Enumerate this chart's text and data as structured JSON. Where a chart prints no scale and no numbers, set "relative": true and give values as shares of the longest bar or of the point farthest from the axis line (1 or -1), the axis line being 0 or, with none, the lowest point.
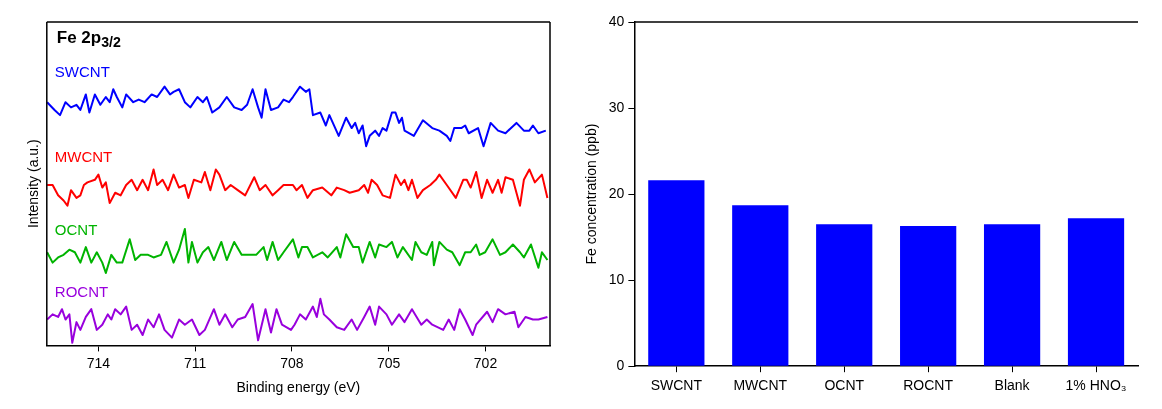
{
  "chart_data": [
    {
      "type": "line",
      "relative": true,
      "xlabel": "Binding energy (eV)",
      "ylabel": "Intensity (a.u.)",
      "annotations": [
        "Fe 2p$_{3/2}$"
      ],
      "xlim": [
        715.6,
        700.0
      ],
      "xticks": [
        714,
        711,
        708,
        705,
        702
      ],
      "grid": false,
      "series": [
        {
          "name": "SWCNT",
          "color": "#0000ff",
          "x": [
            715.59,
            715.36,
            715.19,
            715.02,
            714.85,
            714.68,
            714.56,
            714.39,
            714.28,
            714.11,
            713.94,
            713.77,
            713.65,
            713.54,
            713.43,
            713.26,
            713.14,
            712.92,
            712.75,
            712.57,
            712.35,
            712.18,
            711.95,
            711.78,
            711.67,
            711.5,
            711.32,
            711.15,
            710.93,
            710.76,
            710.64,
            710.47,
            710.25,
            710.02,
            709.79,
            709.56,
            709.39,
            709.22,
            709.05,
            708.94,
            708.82,
            708.65,
            708.43,
            708.26,
            708.09,
            707.97,
            707.75,
            707.57,
            707.46,
            707.35,
            707.12,
            706.95,
            706.84,
            706.55,
            706.32,
            706.15,
            706.04,
            705.93,
            705.81,
            705.7,
            705.59,
            705.42,
            705.3,
            705.19,
            705.07,
            704.9,
            704.79,
            704.68,
            704.59,
            704.51,
            704.22,
            703.94,
            703.65,
            703.43,
            703.2,
            703.09,
            702.97,
            702.75,
            702.63,
            702.52,
            702.23,
            702.06,
            701.84,
            701.61,
            701.38,
            701.04,
            700.81,
            700.64,
            700.53,
            700.36,
            700.13
          ],
          "values": [
            0.94,
            0.91,
            0.89,
            0.94,
            0.92,
            0.93,
            0.91,
            0.97,
            0.9,
            0.97,
            0.93,
            0.96,
            0.94,
            0.99,
            0.96,
            0.92,
            0.97,
            0.94,
            0.95,
            0.94,
            0.97,
            0.96,
            1.0,
            0.97,
            0.98,
            0.99,
            0.94,
            0.92,
            0.96,
            0.94,
            0.96,
            0.9,
            0.92,
            0.96,
            0.92,
            0.91,
            0.93,
            0.99,
            0.92,
            0.88,
            0.99,
            0.91,
            0.92,
            0.95,
            0.94,
            0.96,
            1.0,
            0.98,
            0.99,
            0.89,
            0.9,
            0.85,
            0.89,
            0.81,
            0.88,
            0.84,
            0.86,
            0.82,
            0.85,
            0.77,
            0.81,
            0.83,
            0.81,
            0.84,
            0.83,
            0.9,
            0.9,
            0.86,
            0.88,
            0.83,
            0.81,
            0.87,
            0.84,
            0.83,
            0.81,
            0.79,
            0.84,
            0.84,
            0.85,
            0.82,
            0.84,
            0.77,
            0.86,
            0.83,
            0.82,
            0.86,
            0.83,
            0.83,
            0.85,
            0.82,
            0.83
          ]
        },
        {
          "name": "MWCNT",
          "color": "#ff0000",
          "x": [
            715.59,
            715.42,
            715.25,
            715.08,
            714.96,
            714.85,
            714.68,
            714.56,
            714.45,
            714.34,
            714.11,
            714.0,
            713.88,
            713.77,
            713.65,
            713.48,
            713.31,
            713.14,
            712.97,
            712.8,
            712.63,
            712.46,
            712.29,
            712.18,
            712.01,
            711.84,
            711.67,
            711.5,
            711.32,
            711.21,
            711.04,
            710.81,
            710.7,
            710.53,
            710.36,
            710.25,
            710.07,
            709.9,
            709.68,
            709.45,
            709.17,
            709.0,
            708.82,
            708.6,
            708.43,
            708.26,
            707.97,
            707.86,
            707.69,
            707.52,
            707.35,
            707.06,
            706.78,
            706.61,
            706.38,
            706.21,
            705.93,
            705.76,
            705.64,
            705.53,
            705.36,
            705.19,
            704.96,
            704.79,
            704.62,
            704.51,
            704.39,
            704.28,
            704.11,
            703.94,
            703.71,
            703.54,
            703.43,
            703.2,
            702.92,
            702.69,
            702.58,
            702.46,
            702.29,
            702.12,
            701.95,
            701.78,
            701.61,
            701.5,
            701.38,
            701.15,
            700.93,
            700.81,
            700.64,
            700.47,
            700.25,
            700.08
          ],
          "values": [
            0.62,
            0.62,
            0.58,
            0.56,
            0.54,
            0.6,
            0.57,
            0.58,
            0.62,
            0.63,
            0.64,
            0.66,
            0.61,
            0.63,
            0.55,
            0.59,
            0.58,
            0.62,
            0.64,
            0.6,
            0.64,
            0.6,
            0.68,
            0.62,
            0.64,
            0.6,
            0.66,
            0.61,
            0.62,
            0.57,
            0.64,
            0.63,
            0.67,
            0.6,
            0.68,
            0.66,
            0.6,
            0.62,
            0.6,
            0.58,
            0.65,
            0.6,
            0.62,
            0.58,
            0.6,
            0.62,
            0.62,
            0.6,
            0.62,
            0.57,
            0.6,
            0.61,
            0.58,
            0.61,
            0.6,
            0.59,
            0.6,
            0.62,
            0.59,
            0.64,
            0.62,
            0.58,
            0.57,
            0.66,
            0.62,
            0.64,
            0.6,
            0.64,
            0.57,
            0.6,
            0.62,
            0.64,
            0.66,
            0.62,
            0.57,
            0.64,
            0.64,
            0.61,
            0.67,
            0.57,
            0.64,
            0.59,
            0.64,
            0.59,
            0.65,
            0.64,
            0.54,
            0.64,
            0.68,
            0.63,
            0.66,
            0.57
          ]
        },
        {
          "name": "OCNT",
          "color": "#00b400",
          "x": [
            715.59,
            715.42,
            715.25,
            715.08,
            714.9,
            714.73,
            714.56,
            714.39,
            714.22,
            714.05,
            713.88,
            713.77,
            713.6,
            713.43,
            713.26,
            713.03,
            712.86,
            712.69,
            712.46,
            712.29,
            712.06,
            711.89,
            711.67,
            711.5,
            711.32,
            711.21,
            711.1,
            710.93,
            710.76,
            710.59,
            710.42,
            710.19,
            710.02,
            709.79,
            709.56,
            709.34,
            709.11,
            708.88,
            708.77,
            708.6,
            708.43,
            708.26,
            707.97,
            707.8,
            707.69,
            707.52,
            707.35,
            707.06,
            706.89,
            706.61,
            706.5,
            706.32,
            706.1,
            705.93,
            705.81,
            705.59,
            705.42,
            705.3,
            705.07,
            704.9,
            704.73,
            704.56,
            704.28,
            704.17,
            703.99,
            703.82,
            703.65,
            703.6,
            703.43,
            703.2,
            703.03,
            702.8,
            702.63,
            702.46,
            702.29,
            702.18,
            702.01,
            701.78,
            701.55,
            701.38,
            701.15,
            700.93,
            700.81,
            700.59,
            700.36,
            700.25,
            700.08
          ],
          "values": [
            0.36,
            0.32,
            0.34,
            0.35,
            0.37,
            0.36,
            0.32,
            0.38,
            0.32,
            0.36,
            0.32,
            0.28,
            0.35,
            0.32,
            0.32,
            0.41,
            0.33,
            0.35,
            0.35,
            0.34,
            0.35,
            0.4,
            0.32,
            0.37,
            0.45,
            0.32,
            0.4,
            0.32,
            0.36,
            0.38,
            0.33,
            0.4,
            0.33,
            0.4,
            0.35,
            0.35,
            0.35,
            0.38,
            0.33,
            0.4,
            0.33,
            0.36,
            0.41,
            0.34,
            0.38,
            0.38,
            0.34,
            0.36,
            0.34,
            0.38,
            0.34,
            0.43,
            0.38,
            0.38,
            0.32,
            0.4,
            0.34,
            0.39,
            0.38,
            0.4,
            0.34,
            0.38,
            0.33,
            0.4,
            0.36,
            0.35,
            0.4,
            0.31,
            0.4,
            0.37,
            0.36,
            0.31,
            0.36,
            0.36,
            0.39,
            0.35,
            0.36,
            0.41,
            0.35,
            0.36,
            0.39,
            0.36,
            0.34,
            0.39,
            0.3,
            0.36,
            0.33
          ]
        },
        {
          "name": "ROCNT",
          "color": "#9900dd",
          "x": [
            715.59,
            715.42,
            715.25,
            715.13,
            715.02,
            714.9,
            714.81,
            714.68,
            714.56,
            714.39,
            714.22,
            714.05,
            713.88,
            713.71,
            713.6,
            713.48,
            713.31,
            713.14,
            712.97,
            712.8,
            712.63,
            712.46,
            712.29,
            712.12,
            711.95,
            711.72,
            711.5,
            711.32,
            711.1,
            710.87,
            710.7,
            710.42,
            710.25,
            710.07,
            709.85,
            709.68,
            709.45,
            709.22,
            709.05,
            708.82,
            708.65,
            708.48,
            708.31,
            708.03,
            707.92,
            707.75,
            707.57,
            707.35,
            707.23,
            707.12,
            707.01,
            706.84,
            706.61,
            706.38,
            706.15,
            705.98,
            705.76,
            705.59,
            705.42,
            705.3,
            705.07,
            704.9,
            704.68,
            704.51,
            704.28,
            703.99,
            703.82,
            703.65,
            703.31,
            703.14,
            702.97,
            702.8,
            702.63,
            702.4,
            702.29,
            701.95,
            701.78,
            701.61,
            701.38,
            701.1,
            700.98,
            700.76,
            700.53,
            700.36,
            700.08
          ],
          "values": [
            0.1,
            0.12,
            0.11,
            0.14,
            0.1,
            0.12,
            0.01,
            0.09,
            0.06,
            0.11,
            0.14,
            0.06,
            0.08,
            0.12,
            0.1,
            0.14,
            0.12,
            0.15,
            0.06,
            0.08,
            0.04,
            0.1,
            0.07,
            0.12,
            0.06,
            0.03,
            0.1,
            0.08,
            0.1,
            0.04,
            0.06,
            0.14,
            0.08,
            0.12,
            0.07,
            0.1,
            0.11,
            0.16,
            0.02,
            0.14,
            0.05,
            0.14,
            0.08,
            0.06,
            0.08,
            0.12,
            0.1,
            0.15,
            0.11,
            0.18,
            0.12,
            0.1,
            0.07,
            0.06,
            0.1,
            0.06,
            0.11,
            0.15,
            0.08,
            0.15,
            0.12,
            0.08,
            0.12,
            0.09,
            0.14,
            0.08,
            0.1,
            0.08,
            0.06,
            0.1,
            0.06,
            0.14,
            0.1,
            0.04,
            0.08,
            0.13,
            0.09,
            0.14,
            0.12,
            0.13,
            0.07,
            0.11,
            0.1,
            0.1,
            0.11
          ]
        }
      ]
    },
    {
      "type": "bar",
      "ylabel": "Fe concentration (ppb)",
      "categories": [
        "SWCNT",
        "MWCNT",
        "OCNT",
        "ROCNT",
        "Blank",
        "1% HNO₃"
      ],
      "values": [
        21.6,
        18.7,
        16.5,
        16.3,
        16.5,
        17.2
      ],
      "color": "#0000ff",
      "ylim": [
        0,
        40
      ],
      "yticks": [
        0,
        10,
        20,
        30,
        40
      ],
      "grid": false
    }
  ]
}
